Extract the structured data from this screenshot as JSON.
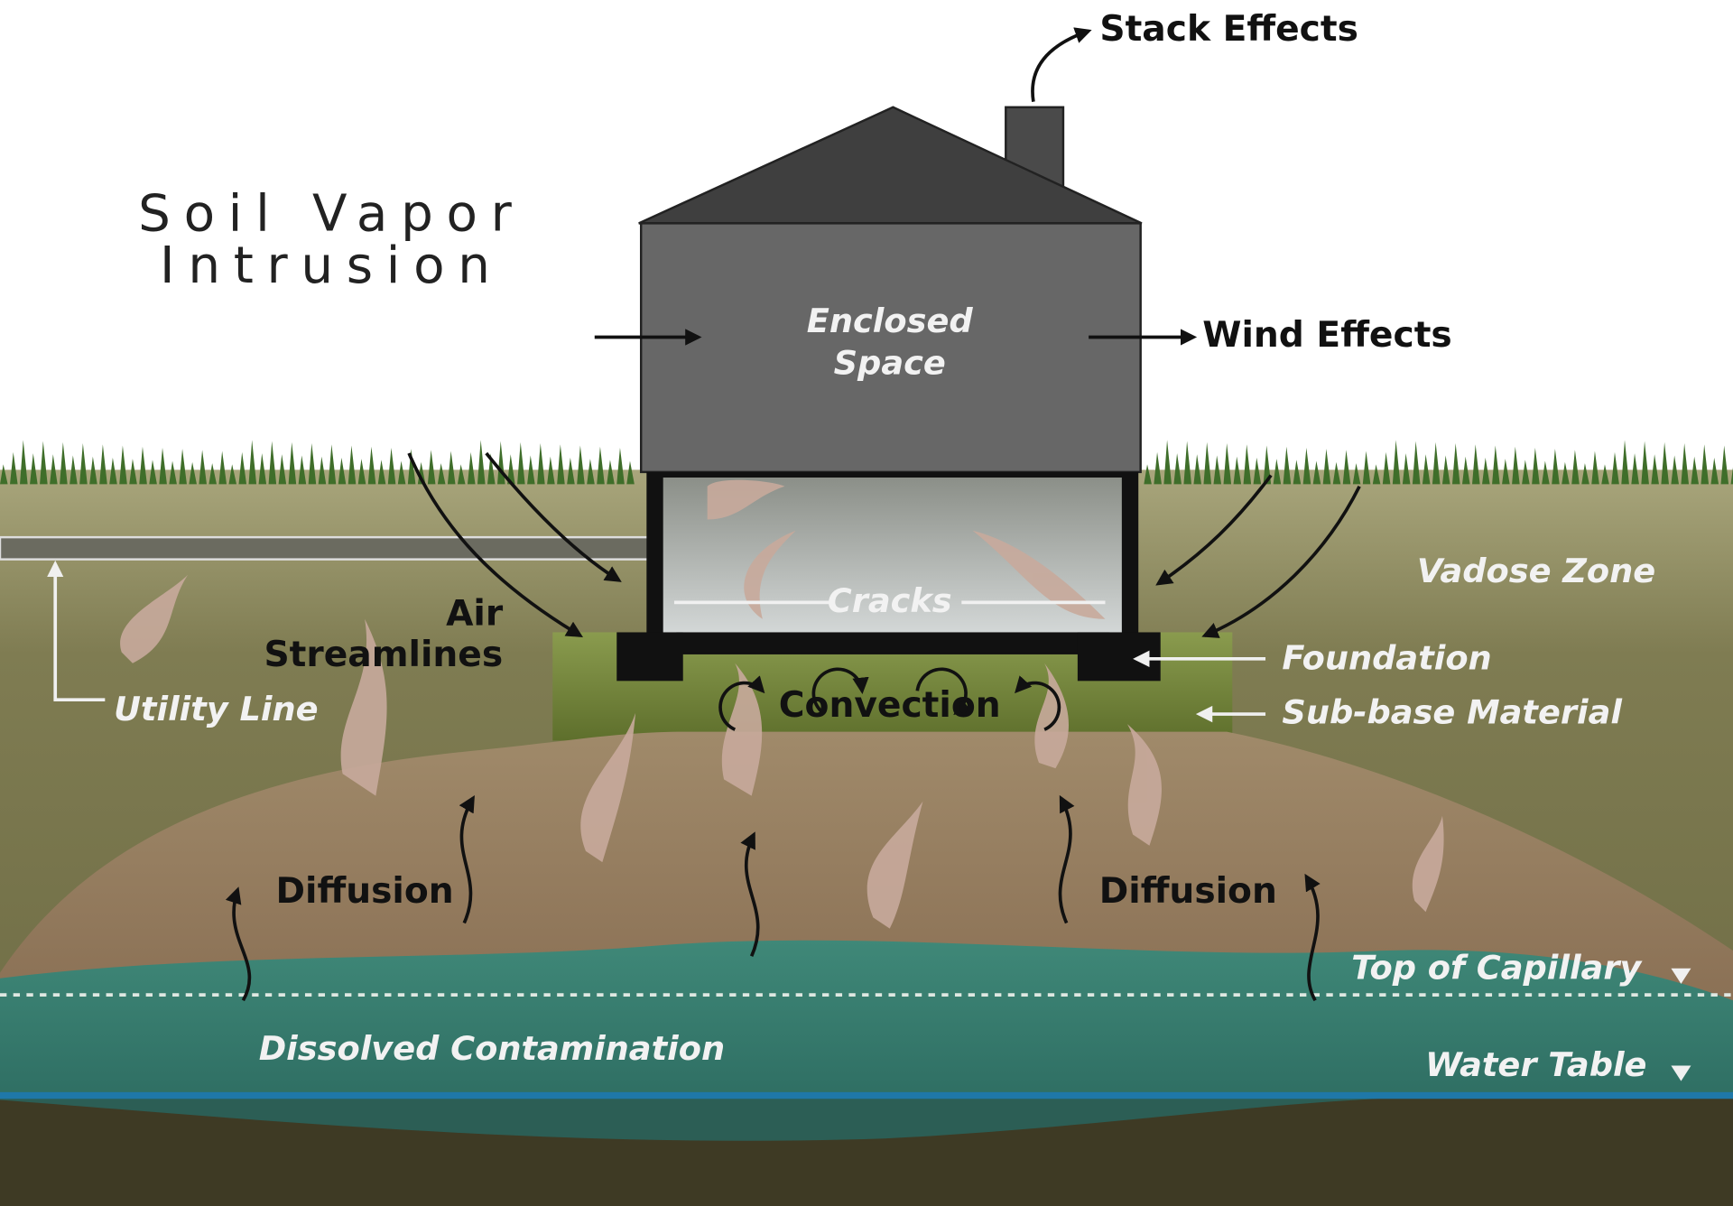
{
  "title": [
    "Soil Vapor",
    "Intrusion"
  ],
  "labels": {
    "stack_effects": "Stack Effects",
    "wind_effects": "Wind Effects",
    "enclosed_space": [
      "Enclosed",
      "Space"
    ],
    "cracks": "Cracks",
    "vadose_zone": "Vadose Zone",
    "air_streamlines": [
      "Air",
      "Streamlines"
    ],
    "foundation": "Foundation",
    "sub_base_material": "Sub-base Material",
    "utility_line": "Utility Line",
    "convection": "Convection",
    "diffusion_left": "Diffusion",
    "diffusion_right": "Diffusion",
    "top_of_capillary": "Top of Capillary",
    "dissolved_contamination": "Dissolved Contamination",
    "water_table": "Water Table"
  }
}
